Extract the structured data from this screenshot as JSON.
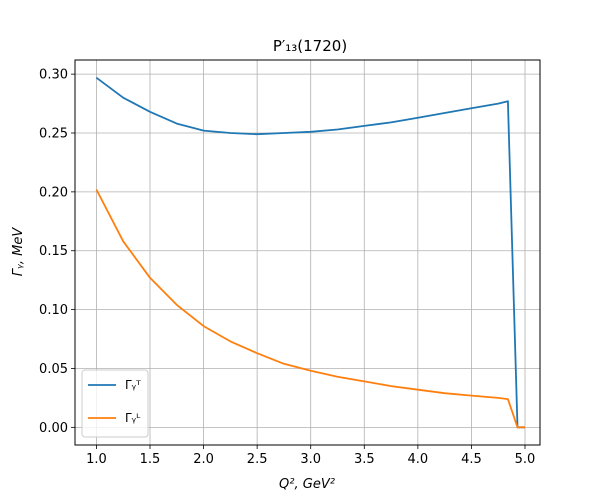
{
  "chart_data": {
    "type": "line",
    "title": "P′₁₃(1720)",
    "xlabel": "Q², GeV²",
    "ylabel": "Γᵧ, MeV",
    "xlim": [
      0.8,
      5.14
    ],
    "ylim": [
      -0.015,
      0.312
    ],
    "xticks": [
      1.0,
      1.5,
      2.0,
      2.5,
      3.0,
      3.5,
      4.0,
      4.5,
      5.0
    ],
    "xtick_labels": [
      "1.0",
      "1.5",
      "2.0",
      "2.5",
      "3.0",
      "3.5",
      "4.0",
      "4.5",
      "5.0"
    ],
    "yticks": [
      0.0,
      0.05,
      0.1,
      0.15,
      0.2,
      0.25,
      0.3
    ],
    "ytick_labels": [
      "0.00",
      "0.05",
      "0.10",
      "0.15",
      "0.20",
      "0.25",
      "0.30"
    ],
    "grid": true,
    "legend_position": "lower-left",
    "series": [
      {
        "name": "Γᵧᵀ",
        "color": "#1f77b4",
        "x": [
          1.0,
          1.25,
          1.5,
          1.75,
          2.0,
          2.25,
          2.5,
          2.75,
          3.0,
          3.25,
          3.5,
          3.75,
          4.0,
          4.25,
          4.5,
          4.75,
          4.84,
          4.93,
          5.0
        ],
        "y": [
          0.297,
          0.28,
          0.268,
          0.258,
          0.252,
          0.25,
          0.249,
          0.25,
          0.251,
          0.253,
          0.256,
          0.259,
          0.263,
          0.267,
          0.271,
          0.275,
          0.277,
          0.0,
          0.0
        ]
      },
      {
        "name": "Γᵧᴸ",
        "color": "#ff7f0e",
        "x": [
          1.0,
          1.25,
          1.5,
          1.75,
          2.0,
          2.25,
          2.5,
          2.75,
          3.0,
          3.25,
          3.5,
          3.75,
          4.0,
          4.25,
          4.5,
          4.75,
          4.84,
          4.93,
          5.0
        ],
        "y": [
          0.202,
          0.158,
          0.127,
          0.104,
          0.086,
          0.073,
          0.063,
          0.054,
          0.048,
          0.043,
          0.039,
          0.035,
          0.032,
          0.029,
          0.027,
          0.025,
          0.024,
          0.0,
          0.0
        ]
      }
    ]
  }
}
